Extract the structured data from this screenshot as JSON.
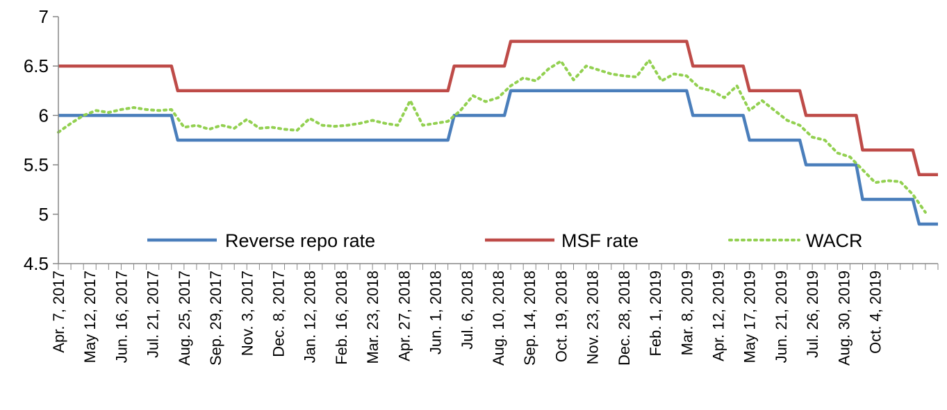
{
  "chart_data": {
    "type": "line",
    "title": "",
    "xlabel": "",
    "ylabel": "",
    "ylim": [
      4.5,
      7
    ],
    "yticks": [
      "4.5",
      "5",
      "5.5",
      "6",
      "6.5",
      "7"
    ],
    "grid": false,
    "legend_position": "bottom-inside",
    "x_tick_labels": [
      "Apr. 7, 2017",
      "May 12, 2017",
      "Jun. 16, 2017",
      "Jul. 21, 2017",
      "Aug. 25, 2017",
      "Sep. 29, 2017",
      "Nov. 3, 2017",
      "Dec. 8, 2017",
      "Jan. 12, 2018",
      "Feb. 16, 2018",
      "Mar. 23, 2018",
      "Apr. 27, 2018",
      "Jun. 1, 2018",
      "Jul. 6, 2018",
      "Aug. 10, 2018",
      "Sep. 14, 2018",
      "Oct. 19, 2018",
      "Nov. 23, 2018",
      "Dec. 28, 2018",
      "Feb. 1, 2019",
      "Mar. 8, 2019",
      "Apr. 12, 2019",
      "May 17, 2019",
      "Jun. 21, 2019",
      "Jul. 26, 2019",
      "Aug. 30, 2019",
      "Oct. 4, 2019"
    ],
    "series": [
      {
        "name": "Reverse repo rate",
        "color": "#4a7ebb",
        "style": "solid",
        "steps": [
          {
            "from_week": 0,
            "value": 6.0
          },
          {
            "from_week": 18,
            "value": 5.75
          },
          {
            "from_week": 62,
            "value": 6.0
          },
          {
            "from_week": 71,
            "value": 6.25
          },
          {
            "from_week": 100,
            "value": 6.0
          },
          {
            "from_week": 109,
            "value": 5.75
          },
          {
            "from_week": 118,
            "value": 5.5
          },
          {
            "from_week": 127,
            "value": 5.15
          },
          {
            "from_week": 136,
            "value": 4.9
          }
        ]
      },
      {
        "name": "MSF rate",
        "color": "#be4b48",
        "style": "solid",
        "steps": [
          {
            "from_week": 0,
            "value": 6.5
          },
          {
            "from_week": 18,
            "value": 6.25
          },
          {
            "from_week": 62,
            "value": 6.5
          },
          {
            "from_week": 71,
            "value": 6.75
          },
          {
            "from_week": 100,
            "value": 6.5
          },
          {
            "from_week": 109,
            "value": 6.25
          },
          {
            "from_week": 118,
            "value": 6.0
          },
          {
            "from_week": 127,
            "value": 5.65
          },
          {
            "from_week": 136,
            "value": 5.4
          }
        ]
      },
      {
        "name": "WACR",
        "color": "#92d050",
        "style": "dotted",
        "points": [
          [
            0,
            5.83
          ],
          [
            2,
            5.92
          ],
          [
            4,
            6.0
          ],
          [
            6,
            6.05
          ],
          [
            8,
            6.03
          ],
          [
            10,
            6.06
          ],
          [
            12,
            6.08
          ],
          [
            14,
            6.06
          ],
          [
            16,
            6.05
          ],
          [
            18,
            6.06
          ],
          [
            20,
            5.88
          ],
          [
            22,
            5.9
          ],
          [
            24,
            5.86
          ],
          [
            26,
            5.9
          ],
          [
            28,
            5.87
          ],
          [
            30,
            5.96
          ],
          [
            32,
            5.87
          ],
          [
            34,
            5.88
          ],
          [
            36,
            5.86
          ],
          [
            38,
            5.85
          ],
          [
            40,
            5.97
          ],
          [
            42,
            5.9
          ],
          [
            44,
            5.89
          ],
          [
            46,
            5.9
          ],
          [
            48,
            5.92
          ],
          [
            50,
            5.95
          ],
          [
            52,
            5.92
          ],
          [
            54,
            5.9
          ],
          [
            56,
            6.15
          ],
          [
            58,
            5.9
          ],
          [
            60,
            5.92
          ],
          [
            62,
            5.94
          ],
          [
            64,
            6.05
          ],
          [
            66,
            6.2
          ],
          [
            68,
            6.14
          ],
          [
            70,
            6.18
          ],
          [
            72,
            6.3
          ],
          [
            74,
            6.38
          ],
          [
            76,
            6.35
          ],
          [
            78,
            6.47
          ],
          [
            80,
            6.55
          ],
          [
            82,
            6.36
          ],
          [
            84,
            6.5
          ],
          [
            86,
            6.46
          ],
          [
            88,
            6.42
          ],
          [
            90,
            6.4
          ],
          [
            92,
            6.39
          ],
          [
            94,
            6.56
          ],
          [
            96,
            6.35
          ],
          [
            98,
            6.42
          ],
          [
            100,
            6.4
          ],
          [
            102,
            6.28
          ],
          [
            104,
            6.25
          ],
          [
            106,
            6.18
          ],
          [
            108,
            6.3
          ],
          [
            110,
            6.05
          ],
          [
            112,
            6.15
          ],
          [
            114,
            6.05
          ],
          [
            116,
            5.95
          ],
          [
            118,
            5.9
          ],
          [
            120,
            5.78
          ],
          [
            122,
            5.75
          ],
          [
            124,
            5.62
          ],
          [
            126,
            5.58
          ],
          [
            128,
            5.45
          ],
          [
            130,
            5.32
          ],
          [
            132,
            5.34
          ],
          [
            134,
            5.33
          ],
          [
            136,
            5.2
          ],
          [
            138,
            5.02
          ]
        ]
      }
    ]
  }
}
